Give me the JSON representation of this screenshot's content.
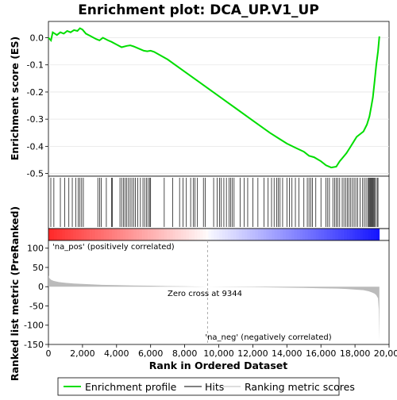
{
  "title": "Enrichment plot: DCA_UP.V1_UP",
  "legend": [
    {
      "label": "Enrichment profile",
      "color": "#00dd00"
    },
    {
      "label": "Hits",
      "color": "#000000"
    },
    {
      "label": "Ranking metric scores",
      "color": "#bbbbbb"
    }
  ],
  "colors": {
    "profile": "#00dd00",
    "hits": "#000000",
    "metric": "#bbbbbb",
    "pos_label": "#cc0000",
    "neg_label": "#0000cc",
    "zero_line": "#aaaaaa"
  },
  "chart_data": [
    {
      "type": "line",
      "ylabel": "Enrichment score (ES)",
      "ylim": [
        -0.51,
        0.06
      ],
      "yticks": [
        {
          "value": 0.0,
          "label": "0.0"
        },
        {
          "value": -0.1,
          "label": "-0.1"
        },
        {
          "value": -0.2,
          "label": "-0.2"
        },
        {
          "value": -0.3,
          "label": "-0.3"
        },
        {
          "value": -0.4,
          "label": "-0.4"
        },
        {
          "value": -0.5,
          "label": "-0.5"
        }
      ],
      "xlim": [
        0,
        20000
      ],
      "series": [
        {
          "x": [
            0,
            150,
            250,
            500,
            700,
            900,
            1100,
            1300,
            1500,
            1700,
            1850,
            2000,
            2200,
            2500,
            2800,
            3000,
            3200,
            3500,
            3700,
            4000,
            4300,
            4600,
            4800,
            5000,
            5300,
            5600,
            5800,
            6000,
            6200,
            7000,
            8000,
            9000,
            10000,
            11000,
            12000,
            13000,
            13500,
            14000,
            14500,
            15000,
            15300,
            15600,
            16000,
            16300,
            16600,
            16900,
            17100,
            17300,
            17500,
            17700,
            17900,
            18100,
            18300,
            18500,
            18700,
            18850,
            18950,
            19050,
            19150,
            19250,
            19350,
            19430
          ],
          "y": [
            0.0,
            -0.01,
            0.02,
            0.01,
            0.02,
            0.015,
            0.025,
            0.02,
            0.028,
            0.025,
            0.035,
            0.03,
            0.015,
            0.005,
            -0.005,
            -0.01,
            0.0,
            -0.01,
            -0.015,
            -0.025,
            -0.035,
            -0.03,
            -0.028,
            -0.032,
            -0.04,
            -0.048,
            -0.05,
            -0.048,
            -0.052,
            -0.08,
            -0.125,
            -0.17,
            -0.215,
            -0.26,
            -0.305,
            -0.35,
            -0.37,
            -0.39,
            -0.405,
            -0.42,
            -0.435,
            -0.44,
            -0.455,
            -0.47,
            -0.478,
            -0.475,
            -0.455,
            -0.44,
            -0.425,
            -0.405,
            -0.385,
            -0.365,
            -0.355,
            -0.345,
            -0.32,
            -0.29,
            -0.255,
            -0.22,
            -0.16,
            -0.1,
            -0.05,
            0.005
          ]
        }
      ]
    },
    {
      "type": "bar",
      "hits": [
        140,
        320,
        700,
        950,
        1200,
        1400,
        1600,
        1750,
        1850,
        1950,
        2050,
        2900,
        3000,
        3100,
        3400,
        3700,
        3750,
        4200,
        4300,
        4400,
        4500,
        4600,
        4700,
        4800,
        4900,
        5000,
        5100,
        5250,
        5400,
        5550,
        5650,
        5750,
        5850,
        5950,
        6000,
        6800,
        7300,
        7700,
        7900,
        8100,
        8350,
        8500,
        8600,
        8750,
        9100,
        9200,
        9700,
        9900,
        10050,
        10150,
        10300,
        10450,
        10600,
        10700,
        10800,
        10900,
        11250,
        11500,
        11700,
        12000,
        12300,
        12650,
        12900,
        13100,
        13250,
        13400,
        13500,
        13600,
        13750,
        14000,
        14150,
        14300,
        14500,
        14700,
        15000,
        15200,
        15300,
        15400,
        15500,
        15700,
        16000,
        16300,
        16400,
        16500,
        16700,
        16800,
        16900,
        17000,
        17100,
        17250,
        17350,
        17450,
        17550,
        17650,
        17750,
        17850,
        17950,
        18050,
        18150,
        18300,
        18450,
        18550,
        18650,
        18750,
        18800,
        18850,
        18900,
        18950,
        19000,
        19050,
        19100,
        19150,
        19200,
        19300,
        19350
      ]
    },
    {
      "type": "area",
      "ylabel": "Ranked list metric (PreRanked)",
      "xlabel": "Rank in Ordered Dataset",
      "ylim": [
        -150,
        120
      ],
      "yticks": [
        {
          "value": 100,
          "label": "100"
        },
        {
          "value": 50,
          "label": "50"
        },
        {
          "value": 0,
          "label": "0"
        },
        {
          "value": -50,
          "label": "-50"
        },
        {
          "value": -100,
          "label": "-100"
        },
        {
          "value": -150,
          "label": "-150"
        }
      ],
      "xticks": [
        {
          "value": 0,
          "label": "0"
        },
        {
          "value": 2000,
          "label": "2,000"
        },
        {
          "value": 4000,
          "label": "4,000"
        },
        {
          "value": 6000,
          "label": "6,000"
        },
        {
          "value": 8000,
          "label": "8,000"
        },
        {
          "value": 10000,
          "label": "10,000"
        },
        {
          "value": 12000,
          "label": "12,000"
        },
        {
          "value": 14000,
          "label": "14,000"
        },
        {
          "value": 16000,
          "label": "16,000"
        },
        {
          "value": 18000,
          "label": "18,000"
        },
        {
          "value": 20000,
          "label": "20,000"
        }
      ],
      "x": [
        0,
        20,
        60,
        150,
        300,
        600,
        1000,
        1500,
        2000,
        3000,
        4000,
        5000,
        6000,
        7000,
        8000,
        9344,
        10500,
        12000,
        13500,
        15000,
        16000,
        17000,
        17500,
        18000,
        18500,
        18800,
        19000,
        19150,
        19250,
        19350,
        19400,
        19430
      ],
      "values": [
        30,
        26,
        22,
        18,
        15,
        12,
        10,
        8,
        7,
        5,
        4,
        3,
        2.5,
        1.5,
        1,
        0,
        -0.5,
        -1,
        -2,
        -3,
        -4,
        -5,
        -6,
        -7.5,
        -9,
        -12,
        -15,
        -18,
        -22,
        -30,
        -60,
        -140
      ],
      "zero_cross_label": "Zero cross at 9344",
      "pos_label": "'na_pos' (positively correlated)",
      "neg_label": "'na_neg' (negatively correlated)"
    }
  ]
}
